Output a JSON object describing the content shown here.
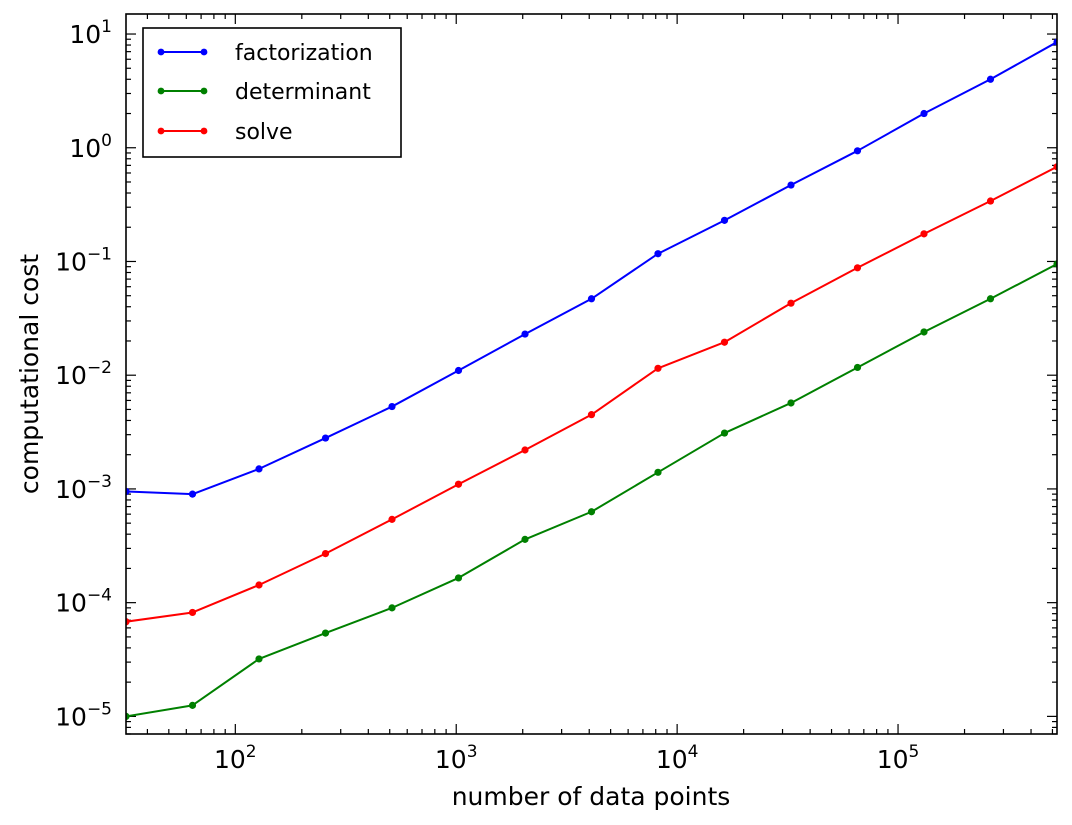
{
  "chart_data": {
    "type": "line",
    "title": "",
    "xlabel": "number of data points",
    "ylabel": "computational cost",
    "xscale": "log",
    "yscale": "log",
    "xlim": [
      32,
      524288
    ],
    "ylim": [
      7e-06,
      15
    ],
    "grid": false,
    "legend_position": "top-left",
    "x_ticks": [
      {
        "base": "10",
        "exp": "2",
        "value": 100
      },
      {
        "base": "10",
        "exp": "3",
        "value": 1000
      },
      {
        "base": "10",
        "exp": "4",
        "value": 10000
      },
      {
        "base": "10",
        "exp": "5",
        "value": 100000
      }
    ],
    "y_ticks": [
      {
        "base": "10",
        "exp": "−5",
        "value": 1e-05
      },
      {
        "base": "10",
        "exp": "−4",
        "value": 0.0001
      },
      {
        "base": "10",
        "exp": "−3",
        "value": 0.001
      },
      {
        "base": "10",
        "exp": "−2",
        "value": 0.01
      },
      {
        "base": "10",
        "exp": "−1",
        "value": 0.1
      },
      {
        "base": "10",
        "exp": "0",
        "value": 1
      },
      {
        "base": "10",
        "exp": "1",
        "value": 10
      }
    ],
    "x": [
      32,
      64,
      128,
      256,
      512,
      1024,
      2048,
      4096,
      8192,
      16384,
      32768,
      65536,
      131072,
      262144,
      524288
    ],
    "series": [
      {
        "name": "factorization",
        "color": "#0000ff",
        "values": [
          0.00095,
          0.0009,
          0.0015,
          0.0028,
          0.0053,
          0.011,
          0.023,
          0.047,
          0.117,
          0.23,
          0.47,
          0.94,
          2.0,
          4.0,
          8.5
        ]
      },
      {
        "name": "determinant",
        "color": "#008000",
        "values": [
          1e-05,
          1.25e-05,
          3.2e-05,
          5.4e-05,
          9e-05,
          0.000165,
          0.00036,
          0.00063,
          0.0014,
          0.0031,
          0.0057,
          0.0117,
          0.024,
          0.047,
          0.095
        ]
      },
      {
        "name": "solve",
        "color": "#ff0000",
        "values": [
          6.8e-05,
          8.2e-05,
          0.000143,
          0.00027,
          0.00054,
          0.0011,
          0.0022,
          0.0045,
          0.0115,
          0.0195,
          0.043,
          0.088,
          0.175,
          0.34,
          0.68
        ]
      }
    ]
  }
}
